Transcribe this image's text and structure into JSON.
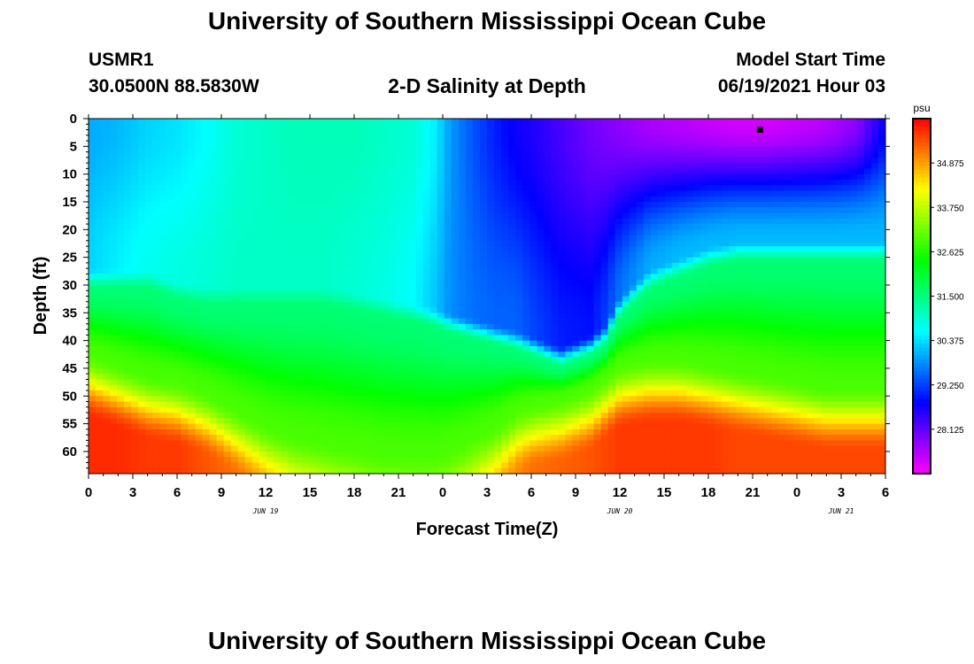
{
  "header": {
    "title": "University of Southern Mississippi Ocean Cube",
    "station": "USMR1",
    "coords": "30.0500N  88.5830W",
    "plot_title": "2-D Salinity at Depth",
    "model_label": "Model Start Time",
    "model_time": "06/19/2021 Hour 03"
  },
  "footer": {
    "title": "University of Southern Mississippi Ocean Cube"
  },
  "chart_data": {
    "type": "heatmap",
    "title": "2-D Salinity at Depth",
    "xlabel": "Forecast Time(Z)",
    "ylabel": "Depth (ft)",
    "x_range_hours": [
      0,
      54
    ],
    "x_tick_hours": [
      0,
      3,
      6,
      9,
      12,
      15,
      18,
      21,
      24,
      27,
      30,
      33,
      36,
      39,
      42,
      45,
      48,
      51,
      54
    ],
    "x_tick_labels": [
      "0",
      "3",
      "6",
      "9",
      "12",
      "15",
      "18",
      "21",
      "0",
      "3",
      "6",
      "9",
      "12",
      "15",
      "18",
      "21",
      "0",
      "3",
      "6"
    ],
    "date_labels": [
      {
        "hour": 12,
        "text": "JUN 19"
      },
      {
        "hour": 36,
        "text": "JUN 20"
      },
      {
        "hour": 51,
        "text": "JUN 21"
      }
    ],
    "y_range_ft": [
      0,
      64
    ],
    "y_tick_values": [
      0,
      5,
      10,
      15,
      20,
      25,
      30,
      35,
      40,
      45,
      50,
      55,
      60
    ],
    "y_tick_labels": [
      "0",
      "5",
      "10",
      "15",
      "20",
      "25",
      "30",
      "35",
      "40",
      "45",
      "50",
      "55",
      "60"
    ],
    "colorbar": {
      "unit": "psu",
      "range": [
        27,
        36
      ],
      "tick_labels": [
        "34.875",
        "33.750",
        "32.625",
        "31.500",
        "30.375",
        "29.250",
        "28.125"
      ],
      "tick_values": [
        34.875,
        33.75,
        32.625,
        31.5,
        30.375,
        29.25,
        28.125
      ]
    },
    "marker": {
      "hour": 45.5,
      "depth_ft": 2
    },
    "salinity_profiles": {
      "hours": [
        0,
        2,
        4,
        6,
        8,
        10,
        12,
        14,
        16,
        18,
        20,
        22,
        23.5,
        24.5,
        26,
        27.5,
        29,
        30,
        32,
        34,
        35,
        36,
        38,
        40,
        42,
        44,
        46,
        48,
        50,
        52,
        54
      ],
      "surface": [
        30.0,
        30.1,
        30.3,
        30.4,
        30.6,
        30.9,
        31.0,
        31.1,
        31.1,
        31.1,
        31.0,
        30.9,
        30.5,
        29.9,
        29.4,
        29.0,
        28.7,
        28.6,
        28.3,
        28.0,
        27.9,
        27.8,
        27.6,
        27.5,
        27.4,
        27.3,
        27.3,
        27.4,
        27.5,
        27.8,
        28.8
      ],
      "mid_upper": [
        30.3,
        30.5,
        30.7,
        30.8,
        30.9,
        31.0,
        31.0,
        31.0,
        31.0,
        30.9,
        30.8,
        30.6,
        30.2,
        29.8,
        29.6,
        29.5,
        29.5,
        29.3,
        29.0,
        28.9,
        29.2,
        29.6,
        30.0,
        30.1,
        30.1,
        30.1,
        30.1,
        30.1,
        30.1,
        30.1,
        30.1
      ],
      "thermo_depth": [
        27,
        27,
        27,
        29,
        30,
        30,
        30,
        30,
        30,
        31,
        32,
        33,
        34,
        35,
        36,
        37,
        38,
        39,
        41,
        39,
        37,
        32,
        27,
        25,
        23,
        22,
        22,
        22,
        22,
        22,
        22
      ],
      "deep_depth": [
        42,
        44,
        46,
        47,
        49,
        52,
        55,
        57,
        58,
        59,
        60,
        60,
        60,
        59,
        57,
        55,
        52,
        51,
        50,
        48,
        46,
        44,
        43,
        43,
        44,
        45,
        46,
        47,
        48,
        48,
        48
      ],
      "bottom": [
        35.7,
        35.7,
        35.6,
        35.6,
        35.4,
        35.2,
        34.9,
        34.6,
        34.4,
        34.2,
        34.0,
        33.9,
        33.9,
        34.0,
        34.3,
        34.7,
        35.0,
        35.2,
        35.3,
        35.4,
        35.5,
        35.6,
        35.6,
        35.6,
        35.6,
        35.5,
        35.5,
        35.5,
        35.5,
        35.5,
        35.5
      ]
    }
  }
}
